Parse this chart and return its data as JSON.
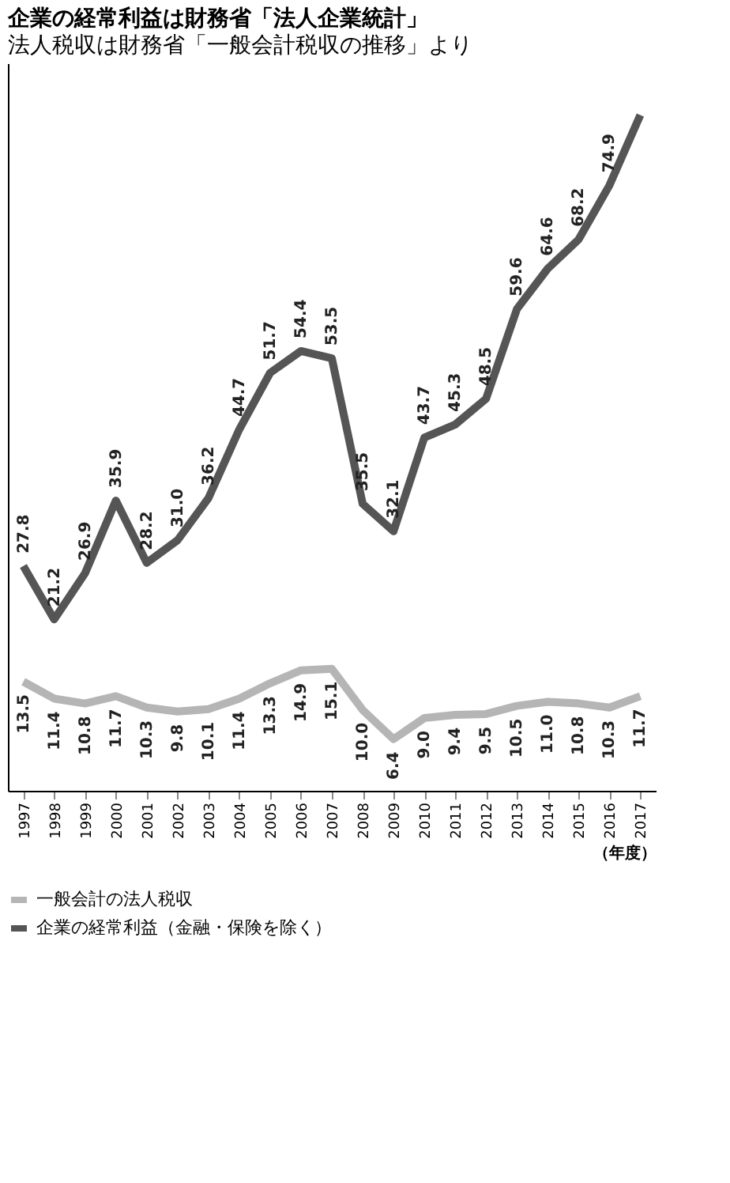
{
  "chart_data": {
    "type": "line",
    "title": "企業の経常利益は財務省「法人企業統計」",
    "subtitle": "法人税収は財務省「一般会計税収の推移」より",
    "xlabel": "（年度）",
    "categories": [
      "1997",
      "1998",
      "1999",
      "2000",
      "2001",
      "2002",
      "2003",
      "2004",
      "2005",
      "2006",
      "2007",
      "2008",
      "2009",
      "2010",
      "2011",
      "2012",
      "2013",
      "2014",
      "2015",
      "2016",
      "2017"
    ],
    "series": [
      {
        "name": "一般会計の法人税収",
        "color": "#b5b5b5",
        "values": [
          13.5,
          11.4,
          10.8,
          11.7,
          10.3,
          9.8,
          10.1,
          11.4,
          13.3,
          14.9,
          15.1,
          10.0,
          6.4,
          9.0,
          9.4,
          9.5,
          10.5,
          11.0,
          10.8,
          10.3,
          11.7
        ],
        "value_labels": [
          "13.5",
          "11.4",
          "10.8",
          "11.7",
          "10.3",
          "9.8",
          "10.1",
          "11.4",
          "13.3",
          "14.9",
          "15.1",
          "10.0",
          "6.4",
          "9.0",
          "9.4",
          "9.5",
          "10.5",
          "11.0",
          "10.8",
          "10.3",
          "11.7"
        ]
      },
      {
        "name": "企業の経常利益（金融・保険を除く）",
        "color": "#555555",
        "values": [
          27.8,
          21.2,
          26.9,
          35.9,
          28.2,
          31.0,
          36.2,
          44.7,
          51.7,
          54.4,
          53.5,
          35.5,
          32.1,
          43.7,
          45.3,
          48.5,
          59.6,
          64.6,
          68.2,
          74.9,
          83.6
        ],
        "value_labels": [
          "27.8",
          "21.2",
          "26.9",
          "35.9",
          "28.2",
          "31.0",
          "36.2",
          "44.7",
          "51.7",
          "54.4",
          "53.5",
          "35.5",
          "32.1",
          "43.7",
          "45.3",
          "48.5",
          "59.6",
          "64.6",
          "68.2",
          "74.9",
          null
        ]
      }
    ],
    "ylim": [
      0,
      90
    ],
    "tick_labels": "x",
    "grid": false,
    "legend": "bottom",
    "marker": "none",
    "line_style": "solid"
  }
}
